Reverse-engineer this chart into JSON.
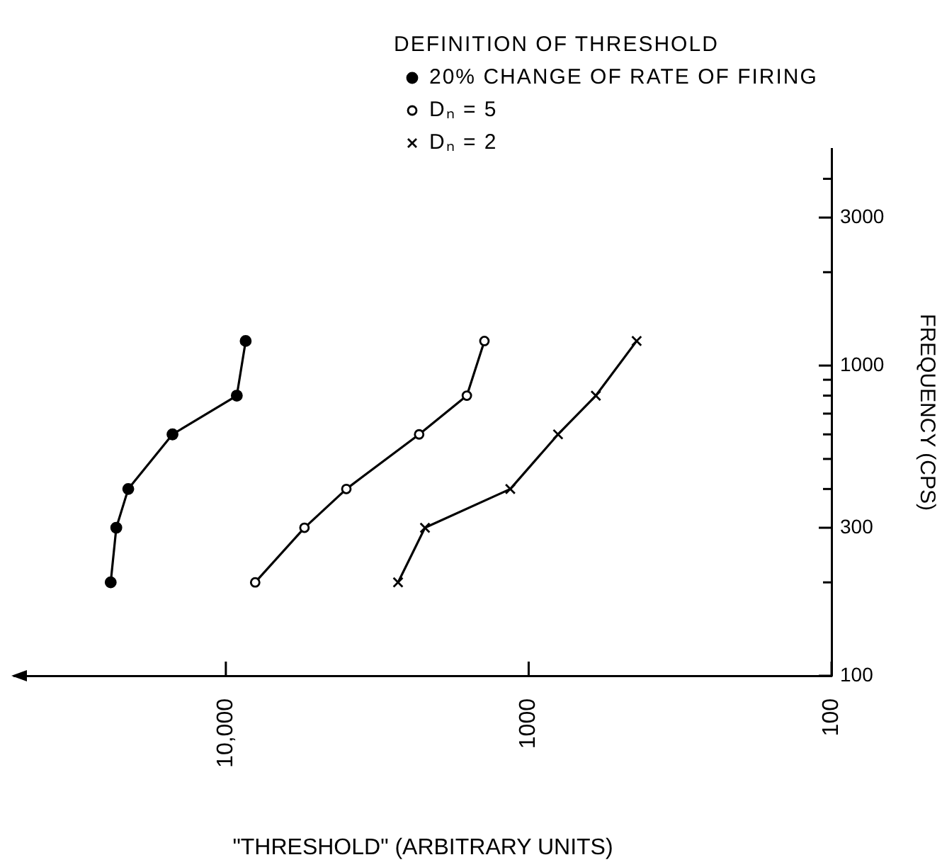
{
  "chart_data": {
    "type": "line",
    "xlabel": "\"THRESHOLD\" (ARBITRARY UNITS)",
    "ylabel": "FREQUENCY (CPS)",
    "legend_title": "DEFINITION OF THRESHOLD",
    "log": "xy",
    "grid": false,
    "legend": "top right",
    "line_style": "solid",
    "xlim": [
      50000,
      100
    ],
    "xticks": [
      {
        "value": 10000,
        "label": "10,000"
      },
      1000,
      100
    ],
    "ylim": [
      100,
      5000
    ],
    "yticks": [
      100,
      {
        "value": 200,
        "label": null
      },
      300,
      {
        "value": 400,
        "label": null
      },
      {
        "value": 500,
        "label": null
      },
      {
        "value": 600,
        "label": null
      },
      {
        "value": 700,
        "label": null
      },
      {
        "value": 800,
        "label": null
      },
      {
        "value": 900,
        "label": null
      },
      1000,
      {
        "value": 2000,
        "label": null
      },
      3000,
      {
        "value": 4000,
        "label": null
      }
    ],
    "series": [
      {
        "name": "20% CHANGE OF RATE OF FIRING",
        "color": "#000000",
        "marker": "circle",
        "x": [
          24000,
          23000,
          21000,
          15000,
          9200,
          8600
        ],
        "values": [
          200,
          300,
          400,
          600,
          800,
          1200
        ]
      },
      {
        "name": "Dₙ = 5",
        "color": "#000000",
        "marker": "circle-open",
        "x": [
          8000,
          5500,
          4000,
          2300,
          1600,
          1400
        ],
        "values": [
          200,
          300,
          400,
          600,
          800,
          1200
        ]
      },
      {
        "name": "Dₙ = 2",
        "color": "#000000",
        "marker": "cross",
        "x": [
          2700,
          2200,
          1150,
          800,
          600,
          440
        ],
        "values": [
          200,
          300,
          400,
          600,
          800,
          1200
        ]
      }
    ]
  }
}
